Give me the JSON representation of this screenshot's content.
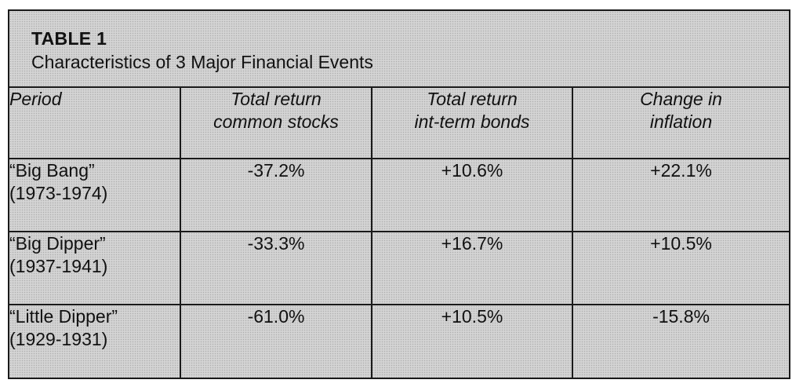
{
  "table": {
    "label": "TABLE 1",
    "caption": "Characteristics of 3 Major Financial Events",
    "headers": [
      {
        "line1": "Period",
        "line2": ""
      },
      {
        "line1": "Total return",
        "line2": "common stocks"
      },
      {
        "line1": "Total return",
        "line2": "int-term bonds"
      },
      {
        "line1": "Change in",
        "line2": "inflation"
      }
    ],
    "rows": [
      {
        "name": "“Big Bang”",
        "years": "(1973-1974)",
        "stocks": "-37.2%",
        "bonds": "+10.6%",
        "inflation": "+22.1%"
      },
      {
        "name": "“Big Dipper”",
        "years": "(1937-1941)",
        "stocks": "-33.3%",
        "bonds": "+16.7%",
        "inflation": "+10.5%"
      },
      {
        "name": "“Little Dipper”",
        "years": "(1929-1931)",
        "stocks": "-61.0%",
        "bonds": "+10.5%",
        "inflation": "-15.8%"
      }
    ]
  }
}
